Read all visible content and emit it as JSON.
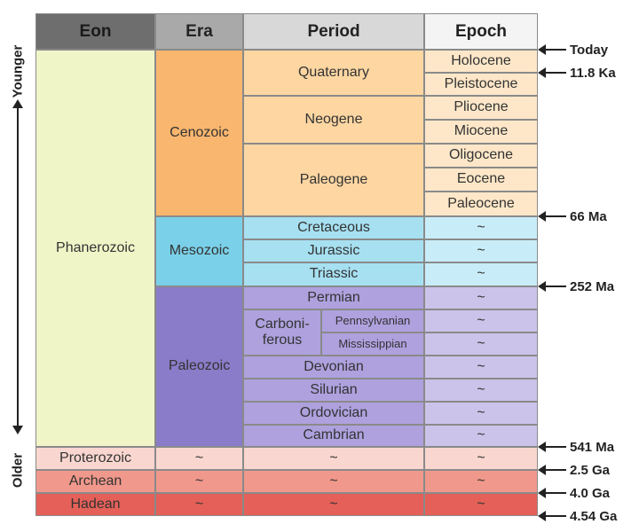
{
  "headers": {
    "eon": "Eon",
    "era": "Era",
    "period": "Period",
    "epoch": "Epoch"
  },
  "side": {
    "younger": "Younger",
    "older": "Older"
  },
  "eons": {
    "phanerozoic": "Phanerozoic",
    "proterozoic": "Proterozoic",
    "archean": "Archean",
    "hadean": "Hadean"
  },
  "eras": {
    "cenozoic": "Cenozoic",
    "mesozoic": "Mesozoic",
    "paleozoic": "Paleozoic",
    "none": "~"
  },
  "periods": {
    "quaternary": "Quaternary",
    "neogene": "Neogene",
    "paleogene": "Paleogene",
    "cretaceous": "Cretaceous",
    "jurassic": "Jurassic",
    "triassic": "Triassic",
    "permian": "Permian",
    "carboniferous": "Carboni-\nferous",
    "pennsylvanian": "Pennsylvanian",
    "mississippian": "Mississippian",
    "devonian": "Devonian",
    "silurian": "Silurian",
    "ordovician": "Ordovician",
    "cambrian": "Cambrian",
    "none": "~"
  },
  "epochs": {
    "holocene": "Holocene",
    "pleistocene": "Pleistocene",
    "pliocene": "Pliocene",
    "miocene": "Miocene",
    "oligocene": "Oligocene",
    "eocene": "Eocene",
    "paleocene": "Paleocene",
    "none": "~"
  },
  "ticks": {
    "today": "Today",
    "ka": "11.8 Ka",
    "ma66": "66 Ma",
    "ma252": "252 Ma",
    "ma541": "541 Ma",
    "ga25": "2.5 Ga",
    "ga40": "4.0 Ga",
    "ga454": "4.54 Ga"
  }
}
